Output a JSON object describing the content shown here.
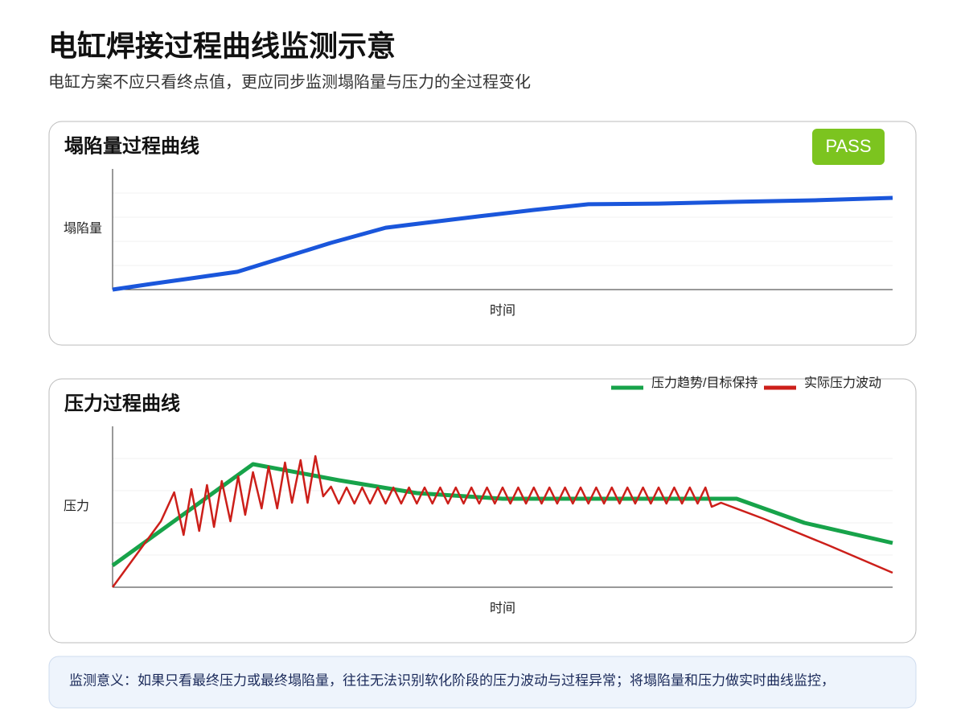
{
  "header": {
    "title": "电缸焊接过程曲线监测示意",
    "subtitle": "电缸方案不应只看终点值，更应同步监测塌陷量与压力的全过程变化"
  },
  "chart_data": [
    {
      "type": "line",
      "title": "塌陷量过程曲线",
      "badge": "PASS",
      "y_label": "塌陷量",
      "x_label": "时间",
      "xlim": [
        0,
        100
      ],
      "ylim": [
        0,
        100
      ],
      "series": [
        {
          "color": "#1a56db",
          "x": [
            0,
            5,
            10,
            16,
            22,
            28,
            35,
            40,
            47,
            54,
            61,
            70,
            80,
            90,
            100
          ],
          "values": [
            0,
            4.7,
            9.3,
            14.7,
            26.7,
            38.7,
            51.3,
            55.3,
            60.7,
            66,
            70.7,
            71.3,
            72.7,
            74,
            76
          ]
        }
      ]
    },
    {
      "type": "line",
      "title": "压力过程曲线",
      "y_label": "压力",
      "x_label": "时间",
      "xlim": [
        0,
        100
      ],
      "ylim": [
        0,
        100
      ],
      "legend": "top-right",
      "series": [
        {
          "name": "压力趋势/目标保持",
          "color": "#17a34a",
          "x": [
            0,
            18,
            29,
            39,
            50,
            80,
            88.7,
            100
          ],
          "values": [
            13.5,
            76.5,
            66.5,
            58.5,
            55,
            55,
            40,
            27.5
          ]
        },
        {
          "name": "实际压力波动",
          "color": "#cc1f1a",
          "x": [
            0,
            6.2,
            7.9,
            9.1,
            10.1,
            11.1,
            12.1,
            13,
            14,
            15.1,
            16.1,
            17,
            18,
            19.1,
            20,
            21.1,
            22.1,
            23,
            24.1,
            25,
            26,
            27,
            28,
            29,
            30,
            31,
            32,
            33,
            34,
            35,
            36,
            37,
            38,
            39,
            40,
            41,
            42,
            43,
            44,
            45,
            46,
            47,
            48,
            49,
            50,
            51,
            52,
            53,
            54,
            55,
            56,
            57,
            58,
            59,
            60,
            61,
            62,
            63,
            64,
            65,
            66,
            67,
            68,
            69,
            70,
            71,
            72,
            73,
            74,
            75,
            76,
            76.8,
            78,
            83.5,
            91.8,
            100
          ],
          "values": [
            0,
            41,
            59,
            32.5,
            61,
            35,
            63.5,
            37.5,
            66,
            41,
            69,
            45,
            71.5,
            49,
            75,
            49,
            77.5,
            52.5,
            79,
            52.5,
            81.5,
            56.5,
            62.5,
            52,
            62,
            52,
            62,
            52,
            62,
            52,
            62,
            52,
            62,
            52,
            62,
            52,
            62,
            52,
            62,
            52,
            62,
            52,
            62,
            52,
            62,
            52,
            62,
            52,
            62,
            52,
            62,
            52,
            62,
            52,
            62,
            52,
            62,
            52,
            62,
            52,
            62,
            52,
            62,
            52,
            62,
            52,
            62,
            52,
            62,
            52,
            62,
            50,
            52.5,
            42.5,
            26,
            9
          ]
        }
      ]
    }
  ],
  "footer": {
    "text": "监测意义：如果只看最终压力或最终塌陷量，往往无法识别软化阶段的压力波动与过程异常；将塌陷量和压力做实时曲线监控，"
  }
}
